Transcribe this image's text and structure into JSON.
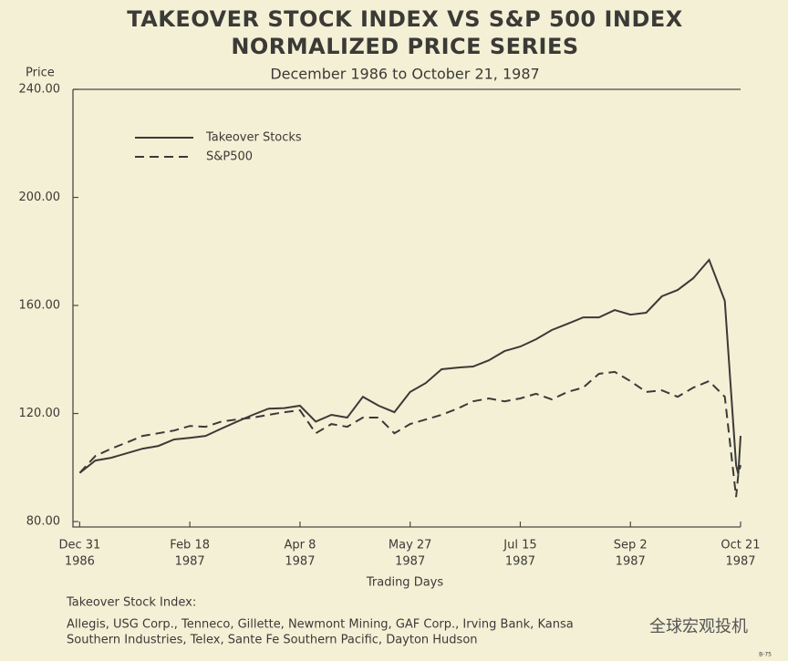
{
  "chart_data": {
    "type": "line",
    "title": "TAKEOVER STOCK INDEX VS S&P 500 INDEX",
    "title2": "NORMALIZED PRICE SERIES",
    "subtitle": "December 1986 to October 21, 1987",
    "y_label": "Price",
    "x_label": "Trading Days",
    "x": [
      "1986-12-31",
      "1987-01-07",
      "1987-01-14",
      "1987-01-21",
      "1987-01-28",
      "1987-02-04",
      "1987-02-11",
      "1987-02-18",
      "1987-02-25",
      "1987-03-04",
      "1987-03-11",
      "1987-03-18",
      "1987-03-25",
      "1987-04-01",
      "1987-04-08",
      "1987-04-15",
      "1987-04-22",
      "1987-04-29",
      "1987-05-06",
      "1987-05-13",
      "1987-05-20",
      "1987-05-27",
      "1987-06-03",
      "1987-06-10",
      "1987-06-17",
      "1987-06-24",
      "1987-07-01",
      "1987-07-08",
      "1987-07-15",
      "1987-07-22",
      "1987-07-29",
      "1987-08-05",
      "1987-08-12",
      "1987-08-19",
      "1987-08-26",
      "1987-09-02",
      "1987-09-09",
      "1987-09-16",
      "1987-09-23",
      "1987-09-30",
      "1987-10-07",
      "1987-10-14",
      "1987-10-19",
      "1987-10-20",
      "1987-10-21"
    ],
    "series": [
      {
        "name": "Takeover Stocks",
        "color": "#3b3a36",
        "dash": "solid",
        "values": [
          98,
          102.6,
          103.6,
          105.3,
          107,
          108,
          110.4,
          111,
          111.7,
          114.4,
          117,
          119.5,
          121.8,
          122,
          122.9,
          117,
          119.5,
          118.5,
          126.2,
          122.9,
          120.5,
          128,
          131.3,
          136.4,
          137,
          137.4,
          139.7,
          143.1,
          144.8,
          147.5,
          150.9,
          153.2,
          155.6,
          155.6,
          158.3,
          156.6,
          157.3,
          163.4,
          165.7,
          170.1,
          176.9,
          161.7,
          100.9,
          97.5,
          111.7
        ]
      },
      {
        "name": "S&P500",
        "color": "#3b3a36",
        "dash": "dashed",
        "values": [
          98,
          104.3,
          107,
          109.3,
          111.7,
          112.7,
          113.7,
          115.4,
          115.1,
          117,
          117.8,
          118.5,
          119.5,
          120.5,
          121.2,
          112.7,
          116.1,
          115.1,
          118.5,
          118.5,
          112.7,
          116.1,
          117.8,
          119.5,
          121.8,
          124.5,
          125.6,
          124.5,
          125.6,
          127.3,
          125.2,
          128,
          129.6,
          134.7,
          135.4,
          132,
          128,
          128.6,
          126.2,
          129.6,
          132,
          126.2,
          89.1,
          97.5,
          100.9
        ]
      }
    ],
    "xlim": [
      "1986-12-28",
      "1987-10-21"
    ],
    "xticks": [
      {
        "value": "1986-12-31",
        "label": [
          "Dec 31",
          "1986"
        ]
      },
      {
        "value": "1987-02-18",
        "label": [
          "Feb 18",
          "1987"
        ]
      },
      {
        "value": "1987-04-08",
        "label": [
          "Apr 8",
          "1987"
        ]
      },
      {
        "value": "1987-05-27",
        "label": [
          "May 27",
          "1987"
        ]
      },
      {
        "value": "1987-07-15",
        "label": [
          "Jul 15",
          "1987"
        ]
      },
      {
        "value": "1987-09-02",
        "label": [
          "Sep 2",
          "1987"
        ]
      },
      {
        "value": "1987-10-21",
        "label": [
          "Oct 21",
          "1987"
        ]
      }
    ],
    "ylim": [
      78,
      240
    ],
    "yticks": [
      {
        "value": 80,
        "label": "80.00"
      },
      {
        "value": 120,
        "label": "120.00"
      },
      {
        "value": 160,
        "label": "160.00"
      },
      {
        "value": 200,
        "label": "200.00"
      },
      {
        "value": 240,
        "label": "240.00"
      }
    ],
    "legend": "upper left",
    "note_title": "Takeover Stock Index:",
    "note_lines": [
      "Allegis, USG Corp., Tenneco, Gillette, Newmont Mining, GAF Corp., Irving Bank, Kansa",
      "Southern Industries, Telex, Sante Fe Southern Pacific, Dayton Hudson"
    ],
    "page_code": "B-75",
    "watermark": "全球宏观投机"
  }
}
